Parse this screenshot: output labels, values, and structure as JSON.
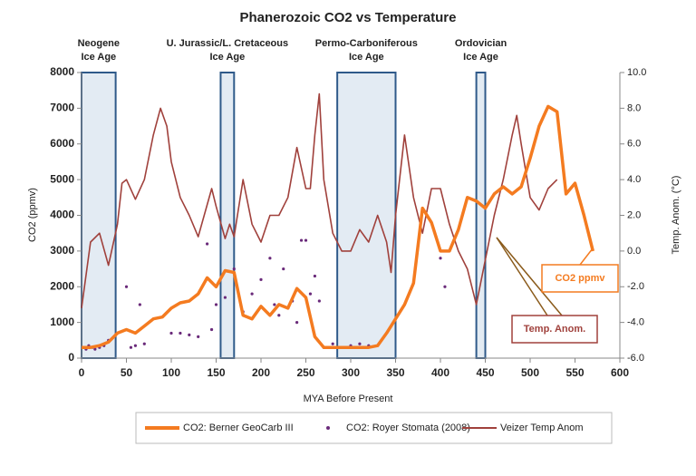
{
  "chart_data": {
    "type": "line",
    "title": "Phanerozoic CO2 vs Temperature",
    "x_label": "MYA Before Present",
    "y_label": "CO2 (ppmv)",
    "y2_label": "Temp. Anom. (°C)",
    "xlim": [
      0,
      600
    ],
    "xticks": [
      0,
      50,
      100,
      150,
      200,
      250,
      300,
      350,
      400,
      450,
      500,
      550,
      600
    ],
    "ylim": [
      0,
      8000
    ],
    "yticks": [
      0,
      1000,
      2000,
      3000,
      4000,
      5000,
      6000,
      7000,
      8000
    ],
    "y2lim": [
      -6,
      10
    ],
    "y2ticks": [
      {
        "value": -6,
        "label": "-6.0"
      },
      {
        "value": -4,
        "label": "-4.0"
      },
      {
        "value": -2,
        "label": "-2.0"
      },
      {
        "value": 0,
        "label": "0.0"
      },
      {
        "value": 2,
        "label": "2.0"
      },
      {
        "value": 4,
        "label": "4.0"
      },
      {
        "value": 6,
        "label": "6.0"
      },
      {
        "value": 8,
        "label": "8.0"
      },
      {
        "value": 10,
        "label": "10.0"
      }
    ],
    "ice_ages": [
      {
        "label": [
          "Neogene",
          "Ice Age"
        ],
        "start": 0,
        "end": 38
      },
      {
        "label": [
          "U. Jurassic/L. Cretaceous",
          "Ice Age"
        ],
        "start": 155,
        "end": 170
      },
      {
        "label": [
          "Permo-Carboniferous",
          "Ice Age"
        ],
        "start": 285,
        "end": 350
      },
      {
        "label": [
          "Ordovician",
          "Ice Age"
        ],
        "start": 440,
        "end": 450
      }
    ],
    "series": [
      {
        "name": "CO2: Berner GeoCarb III",
        "type": "line",
        "color": "#f47b20",
        "x": [
          0,
          10,
          20,
          30,
          40,
          50,
          60,
          70,
          80,
          90,
          100,
          110,
          120,
          130,
          140,
          150,
          160,
          170,
          180,
          190,
          200,
          210,
          220,
          230,
          240,
          250,
          260,
          270,
          280,
          300,
          320,
          330,
          340,
          350,
          360,
          370,
          380,
          390,
          400,
          410,
          420,
          430,
          440,
          450,
          460,
          470,
          480,
          490,
          500,
          510,
          520,
          530,
          540,
          550,
          560,
          570
        ],
        "values": [
          300,
          300,
          350,
          450,
          700,
          800,
          700,
          900,
          1100,
          1150,
          1400,
          1550,
          1600,
          1800,
          2250,
          2000,
          2450,
          2400,
          1200,
          1100,
          1450,
          1200,
          1500,
          1400,
          1950,
          1700,
          600,
          300,
          300,
          300,
          300,
          350,
          700,
          1100,
          1500,
          2100,
          4200,
          3800,
          3000,
          3000,
          3600,
          4500,
          4400,
          4200,
          4600,
          4800,
          4600,
          4800,
          5600,
          6500,
          7050,
          6900,
          4600,
          4900,
          4000,
          3000
        ]
      },
      {
        "name": "CO2: Royer Stomata (2008)",
        "type": "scatter",
        "color": "#6a2a7a",
        "x": [
          2,
          5,
          8,
          12,
          15,
          20,
          25,
          30,
          50,
          55,
          60,
          65,
          70,
          100,
          110,
          120,
          130,
          140,
          145,
          150,
          160,
          170,
          180,
          190,
          200,
          210,
          215,
          220,
          225,
          230,
          235,
          240,
          245,
          250,
          255,
          260,
          265,
          270,
          280,
          300,
          310,
          320,
          400,
          405
        ],
        "values": [
          300,
          250,
          350,
          300,
          250,
          300,
          350,
          500,
          2000,
          300,
          350,
          1500,
          400,
          700,
          700,
          650,
          600,
          3200,
          800,
          1500,
          1700,
          2500,
          1300,
          1800,
          2200,
          2800,
          1500,
          1200,
          2500,
          1400,
          1600,
          1000,
          3300,
          3300,
          1800,
          2300,
          1600,
          300,
          400,
          350,
          400,
          350,
          2800,
          2000
        ]
      },
      {
        "name": "Veizer Temp Anom",
        "type": "line",
        "axis": "y2",
        "color": "#a0413c",
        "x": [
          0,
          10,
          20,
          30,
          40,
          45,
          50,
          60,
          70,
          80,
          88,
          95,
          100,
          110,
          120,
          130,
          145,
          150,
          160,
          165,
          170,
          180,
          190,
          200,
          210,
          220,
          230,
          240,
          250,
          255,
          260,
          265,
          270,
          280,
          290,
          300,
          310,
          320,
          330,
          340,
          345,
          350,
          360,
          370,
          380,
          390,
          400,
          410,
          420,
          430,
          440,
          450,
          460,
          470,
          480,
          485,
          490,
          500,
          510,
          520,
          530
        ],
        "values": [
          -3.2,
          0.5,
          1.0,
          -0.8,
          1.5,
          3.8,
          4.0,
          2.9,
          4.0,
          6.5,
          8.0,
          7.0,
          5.0,
          3.0,
          2.0,
          0.8,
          3.5,
          2.5,
          0.7,
          1.5,
          0.8,
          4.0,
          1.5,
          0.5,
          2.0,
          2.0,
          3.0,
          5.8,
          3.5,
          3.5,
          6.5,
          8.8,
          4.0,
          1.0,
          0.0,
          0.0,
          1.2,
          0.5,
          2.0,
          0.5,
          -1.2,
          2.0,
          6.5,
          3.0,
          1.0,
          3.5,
          3.5,
          1.5,
          0.0,
          -1.0,
          -3.0,
          -0.5,
          2.0,
          4.0,
          6.5,
          7.6,
          6.0,
          3.0,
          2.3,
          3.5,
          4.0
        ]
      }
    ],
    "annotations": [
      "CO2 ppmv",
      "Temp. Anom."
    ]
  }
}
